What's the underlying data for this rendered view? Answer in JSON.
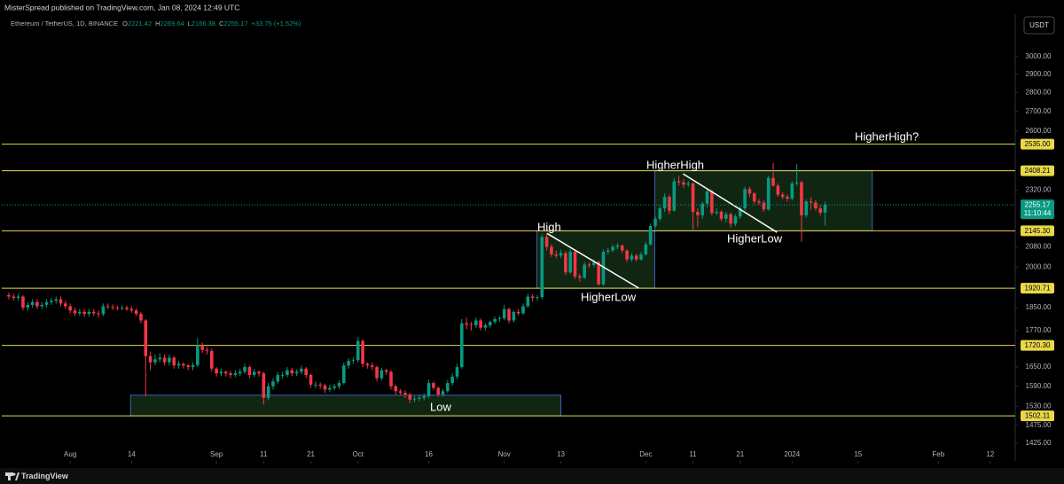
{
  "header": {
    "publisher": "MisterSpread published on TradingView.com, Jan 08, 2024 12:49 UTC",
    "symbol": "Ethereum / TetherUS, 1D, BINANCE",
    "open_label": "O",
    "open": "2221.42",
    "high_label": "H",
    "high": "2269.64",
    "low_label": "L",
    "low": "2166.38",
    "close_label": "C",
    "close": "2255.17",
    "change": "+33.75 (+1.52%)",
    "currency": "USDT"
  },
  "footer": {
    "brand": "TradingView"
  },
  "chart_data": {
    "type": "candlestick",
    "log_scale": true,
    "up_color": "#089981",
    "down_color": "#f23645",
    "xlim": [
      -1.5,
      213.3
    ],
    "ylim": [
      1377,
      3267
    ],
    "xticks": [
      {
        "value": 13,
        "label": "Aug"
      },
      {
        "value": 26,
        "label": "14"
      },
      {
        "value": 44,
        "label": "Sep"
      },
      {
        "value": 54,
        "label": "11"
      },
      {
        "value": 64,
        "label": "21"
      },
      {
        "value": 74,
        "label": "Oct"
      },
      {
        "value": 89,
        "label": "16"
      },
      {
        "value": 105,
        "label": "Nov"
      },
      {
        "value": 117,
        "label": "13"
      },
      {
        "value": 135,
        "label": "Dec"
      },
      {
        "value": 145,
        "label": "11"
      },
      {
        "value": 155,
        "label": "21"
      },
      {
        "value": 166,
        "label": "2024"
      },
      {
        "value": 180,
        "label": "15"
      },
      {
        "value": 197,
        "label": "Feb"
      },
      {
        "value": 208,
        "label": "12"
      }
    ],
    "yticks": [
      {
        "value": 3000,
        "label": "3000.00"
      },
      {
        "value": 2900,
        "label": "2900.00"
      },
      {
        "value": 2800,
        "label": "2800.00"
      },
      {
        "value": 2700,
        "label": "2700.00"
      },
      {
        "value": 2600,
        "label": "2600.00"
      },
      {
        "value": 2320,
        "label": "2320.00"
      },
      {
        "value": 2080,
        "label": "2080.00"
      },
      {
        "value": 2000,
        "label": "2000.00"
      },
      {
        "value": 1850,
        "label": "1850.00"
      },
      {
        "value": 1770,
        "label": "1770.00"
      },
      {
        "value": 1650,
        "label": "1650.00"
      },
      {
        "value": 1590,
        "label": "1590.00"
      },
      {
        "value": 1530,
        "label": "1530.00"
      },
      {
        "value": 1475,
        "label": "1475.00"
      },
      {
        "value": 1425,
        "label": "1425.00"
      }
    ],
    "level_color": "#e8d84a",
    "levels": [
      {
        "value": 2535,
        "label": "2535.00"
      },
      {
        "value": 2408.21,
        "label": "2408.21"
      },
      {
        "value": 2145.3,
        "label": "2145.30"
      },
      {
        "value": 1920.71,
        "label": "1920.71"
      },
      {
        "value": 1720.3,
        "label": "1720.30"
      },
      {
        "value": 1502.11,
        "label": "1502.11"
      }
    ],
    "last_price": {
      "value": 2255.17,
      "countdown": "11:10:44"
    },
    "zones": [
      {
        "x0": 25.8,
        "x1": 117,
        "top": 1563,
        "bottom": 1502.11
      },
      {
        "x0": 111.9,
        "x1": 136.9,
        "top": 2145.3,
        "bottom": 1920.71
      },
      {
        "x0": 136.9,
        "x1": 183,
        "top": 2408.21,
        "bottom": 2145.3
      }
    ],
    "trendlines": [
      {
        "x0": 114.1,
        "y0": 2134,
        "x1": 133.5,
        "y1": 1921
      },
      {
        "x0": 142.9,
        "y0": 2394,
        "x1": 162.8,
        "y1": 2139
      }
    ],
    "annotations": [
      "High",
      "HigherLow",
      "HigherHigh",
      "HigherLow",
      "HigherHigh?",
      "Low"
    ],
    "ohlc": [
      [
        1895,
        1905,
        1880,
        1890
      ],
      [
        1890,
        1900,
        1875,
        1885
      ],
      [
        1885,
        1900,
        1875,
        1890
      ],
      [
        1890,
        1895,
        1840,
        1850
      ],
      [
        1850,
        1870,
        1840,
        1860
      ],
      [
        1860,
        1880,
        1850,
        1870
      ],
      [
        1870,
        1880,
        1845,
        1855
      ],
      [
        1855,
        1870,
        1845,
        1860
      ],
      [
        1860,
        1880,
        1850,
        1870
      ],
      [
        1870,
        1885,
        1860,
        1875
      ],
      [
        1875,
        1890,
        1865,
        1880
      ],
      [
        1880,
        1890,
        1855,
        1865
      ],
      [
        1865,
        1875,
        1845,
        1855
      ],
      [
        1855,
        1865,
        1830,
        1840
      ],
      [
        1840,
        1850,
        1820,
        1830
      ],
      [
        1830,
        1845,
        1820,
        1835
      ],
      [
        1835,
        1845,
        1818,
        1828
      ],
      [
        1828,
        1845,
        1818,
        1835
      ],
      [
        1835,
        1845,
        1820,
        1830
      ],
      [
        1830,
        1840,
        1815,
        1827
      ],
      [
        1827,
        1865,
        1820,
        1855
      ],
      [
        1855,
        1865,
        1845,
        1852
      ],
      [
        1852,
        1862,
        1842,
        1850
      ],
      [
        1850,
        1858,
        1840,
        1848
      ],
      [
        1848,
        1858,
        1840,
        1850
      ],
      [
        1850,
        1858,
        1838,
        1845
      ],
      [
        1845,
        1855,
        1832,
        1840
      ],
      [
        1840,
        1848,
        1820,
        1828
      ],
      [
        1828,
        1835,
        1795,
        1805
      ],
      [
        1805,
        1810,
        1560,
        1685
      ],
      [
        1685,
        1700,
        1640,
        1665
      ],
      [
        1665,
        1690,
        1655,
        1675
      ],
      [
        1675,
        1695,
        1665,
        1680
      ],
      [
        1680,
        1690,
        1655,
        1665
      ],
      [
        1665,
        1690,
        1655,
        1680
      ],
      [
        1680,
        1685,
        1645,
        1655
      ],
      [
        1655,
        1670,
        1645,
        1660
      ],
      [
        1660,
        1665,
        1645,
        1655
      ],
      [
        1655,
        1660,
        1640,
        1650
      ],
      [
        1650,
        1665,
        1640,
        1656
      ],
      [
        1656,
        1745,
        1650,
        1720
      ],
      [
        1720,
        1730,
        1695,
        1705
      ],
      [
        1705,
        1715,
        1690,
        1702
      ],
      [
        1702,
        1710,
        1635,
        1645
      ],
      [
        1645,
        1650,
        1620,
        1630
      ],
      [
        1630,
        1645,
        1622,
        1635
      ],
      [
        1635,
        1640,
        1620,
        1630
      ],
      [
        1630,
        1638,
        1615,
        1625
      ],
      [
        1625,
        1640,
        1618,
        1630
      ],
      [
        1630,
        1645,
        1622,
        1635
      ],
      [
        1635,
        1660,
        1628,
        1650
      ],
      [
        1650,
        1655,
        1615,
        1625
      ],
      [
        1625,
        1645,
        1618,
        1635
      ],
      [
        1635,
        1640,
        1620,
        1630
      ],
      [
        1630,
        1635,
        1535,
        1555
      ],
      [
        1555,
        1600,
        1548,
        1590
      ],
      [
        1590,
        1615,
        1580,
        1605
      ],
      [
        1605,
        1635,
        1598,
        1625
      ],
      [
        1625,
        1635,
        1615,
        1625
      ],
      [
        1625,
        1650,
        1618,
        1640
      ],
      [
        1640,
        1648,
        1622,
        1630
      ],
      [
        1630,
        1642,
        1622,
        1635
      ],
      [
        1635,
        1655,
        1628,
        1645
      ],
      [
        1645,
        1650,
        1615,
        1625
      ],
      [
        1625,
        1630,
        1585,
        1595
      ],
      [
        1595,
        1605,
        1585,
        1595
      ],
      [
        1595,
        1602,
        1582,
        1592
      ],
      [
        1592,
        1598,
        1570,
        1580
      ],
      [
        1580,
        1595,
        1572,
        1585
      ],
      [
        1585,
        1598,
        1578,
        1590
      ],
      [
        1590,
        1608,
        1582,
        1600
      ],
      [
        1600,
        1665,
        1595,
        1655
      ],
      [
        1655,
        1678,
        1645,
        1670
      ],
      [
        1670,
        1680,
        1660,
        1672
      ],
      [
        1672,
        1748,
        1665,
        1735
      ],
      [
        1735,
        1740,
        1650,
        1660
      ],
      [
        1660,
        1665,
        1645,
        1655
      ],
      [
        1655,
        1665,
        1640,
        1650
      ],
      [
        1650,
        1655,
        1605,
        1615
      ],
      [
        1615,
        1648,
        1608,
        1640
      ],
      [
        1640,
        1645,
        1625,
        1635
      ],
      [
        1635,
        1640,
        1580,
        1590
      ],
      [
        1590,
        1595,
        1565,
        1575
      ],
      [
        1575,
        1582,
        1562,
        1570
      ],
      [
        1570,
        1578,
        1555,
        1565
      ],
      [
        1565,
        1570,
        1540,
        1550
      ],
      [
        1550,
        1560,
        1542,
        1552
      ],
      [
        1552,
        1562,
        1545,
        1555
      ],
      [
        1555,
        1568,
        1548,
        1560
      ],
      [
        1560,
        1610,
        1555,
        1600
      ],
      [
        1600,
        1605,
        1578,
        1585
      ],
      [
        1585,
        1590,
        1558,
        1565
      ],
      [
        1565,
        1582,
        1558,
        1575
      ],
      [
        1575,
        1610,
        1570,
        1600
      ],
      [
        1600,
        1630,
        1592,
        1620
      ],
      [
        1620,
        1660,
        1612,
        1650
      ],
      [
        1650,
        1810,
        1645,
        1795
      ],
      [
        1795,
        1815,
        1775,
        1790
      ],
      [
        1790,
        1800,
        1770,
        1788
      ],
      [
        1788,
        1815,
        1780,
        1805
      ],
      [
        1805,
        1812,
        1770,
        1780
      ],
      [
        1780,
        1795,
        1772,
        1788
      ],
      [
        1788,
        1805,
        1780,
        1800
      ],
      [
        1800,
        1818,
        1792,
        1810
      ],
      [
        1810,
        1820,
        1800,
        1812
      ],
      [
        1812,
        1860,
        1805,
        1845
      ],
      [
        1845,
        1850,
        1795,
        1805
      ],
      [
        1805,
        1840,
        1798,
        1835
      ],
      [
        1835,
        1845,
        1822,
        1830
      ],
      [
        1830,
        1865,
        1825,
        1855
      ],
      [
        1855,
        1900,
        1850,
        1890
      ],
      [
        1890,
        1898,
        1872,
        1885
      ],
      [
        1885,
        1895,
        1875,
        1888
      ],
      [
        1888,
        2130,
        1880,
        2120
      ],
      [
        2120,
        2135,
        2065,
        2080
      ],
      [
        2080,
        2090,
        2040,
        2050
      ],
      [
        2050,
        2065,
        2035,
        2045
      ],
      [
        2045,
        2068,
        2035,
        2055
      ],
      [
        2055,
        2062,
        1970,
        1980
      ],
      [
        1980,
        2070,
        1975,
        2060
      ],
      [
        2060,
        2065,
        1955,
        1965
      ],
      [
        1965,
        1975,
        1945,
        1960
      ],
      [
        1960,
        2020,
        1955,
        2010
      ],
      [
        2010,
        2018,
        1998,
        2008
      ],
      [
        2008,
        2030,
        2000,
        2020
      ],
      [
        2020,
        2025,
        1930,
        1935
      ],
      [
        1935,
        2070,
        1930,
        2060
      ],
      [
        2060,
        2075,
        2050,
        2065
      ],
      [
        2065,
        2090,
        2058,
        2080
      ],
      [
        2080,
        2095,
        2070,
        2085
      ],
      [
        2085,
        2090,
        2055,
        2065
      ],
      [
        2065,
        2070,
        2020,
        2030
      ],
      [
        2030,
        2055,
        2022,
        2045
      ],
      [
        2045,
        2052,
        2022,
        2030
      ],
      [
        2030,
        2060,
        2025,
        2050
      ],
      [
        2050,
        2100,
        2045,
        2090
      ],
      [
        2090,
        2175,
        2085,
        2165
      ],
      [
        2165,
        2205,
        2158,
        2195
      ],
      [
        2195,
        2250,
        2185,
        2240
      ],
      [
        2240,
        2305,
        2225,
        2290
      ],
      [
        2290,
        2300,
        2215,
        2230
      ],
      [
        2230,
        2375,
        2225,
        2360
      ],
      [
        2360,
        2385,
        2340,
        2355
      ],
      [
        2355,
        2370,
        2330,
        2345
      ],
      [
        2345,
        2362,
        2335,
        2350
      ],
      [
        2350,
        2355,
        2150,
        2225
      ],
      [
        2225,
        2240,
        2160,
        2210
      ],
      [
        2210,
        2270,
        2195,
        2260
      ],
      [
        2260,
        2325,
        2245,
        2315
      ],
      [
        2315,
        2320,
        2210,
        2220
      ],
      [
        2220,
        2240,
        2210,
        2225
      ],
      [
        2225,
        2232,
        2185,
        2195
      ],
      [
        2195,
        2225,
        2180,
        2215
      ],
      [
        2215,
        2222,
        2160,
        2175
      ],
      [
        2175,
        2215,
        2165,
        2205
      ],
      [
        2205,
        2250,
        2195,
        2240
      ],
      [
        2240,
        2335,
        2230,
        2325
      ],
      [
        2325,
        2335,
        2290,
        2305
      ],
      [
        2305,
        2312,
        2260,
        2270
      ],
      [
        2270,
        2280,
        2255,
        2265
      ],
      [
        2265,
        2275,
        2225,
        2235
      ],
      [
        2235,
        2385,
        2230,
        2375
      ],
      [
        2375,
        2445,
        2335,
        2340
      ],
      [
        2340,
        2350,
        2290,
        2300
      ],
      [
        2300,
        2310,
        2280,
        2290
      ],
      [
        2290,
        2300,
        2270,
        2282
      ],
      [
        2282,
        2360,
        2275,
        2350
      ],
      [
        2350,
        2440,
        2340,
        2355
      ],
      [
        2355,
        2362,
        2100,
        2210
      ],
      [
        2210,
        2280,
        2200,
        2270
      ],
      [
        2270,
        2290,
        2235,
        2265
      ],
      [
        2265,
        2275,
        2230,
        2240
      ],
      [
        2240,
        2255,
        2210,
        2221.42
      ],
      [
        2221.42,
        2269.64,
        2166.38,
        2255.17
      ]
    ]
  }
}
